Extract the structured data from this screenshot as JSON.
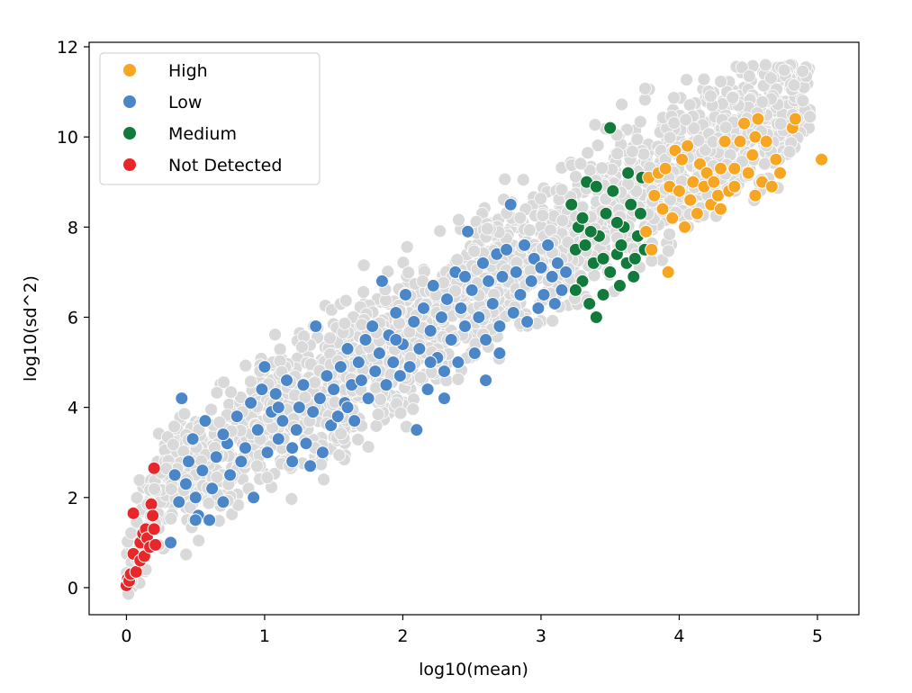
{
  "chart_data": {
    "type": "scatter",
    "title": "",
    "xlabel": "log10(mean)",
    "ylabel": "log10(sd^2)",
    "xlim": [
      -0.27,
      5.3
    ],
    "ylim": [
      -0.6,
      12.1
    ],
    "xticks": [
      0,
      1,
      2,
      3,
      4,
      5
    ],
    "yticks": [
      0,
      2,
      4,
      6,
      8,
      10,
      12
    ],
    "grid": false,
    "legend_position": "top-left",
    "background_points": {
      "color": "#d9d9d9",
      "description": "all other genes (grey cloud)"
    },
    "series": [
      {
        "name": "High",
        "color": "#f6a623",
        "points": [
          [
            3.78,
            9.1
          ],
          [
            3.82,
            8.7
          ],
          [
            3.85,
            9.2
          ],
          [
            3.88,
            8.4
          ],
          [
            3.9,
            9.3
          ],
          [
            3.93,
            8.9
          ],
          [
            3.95,
            8.2
          ],
          [
            3.97,
            9.7
          ],
          [
            4.0,
            8.8
          ],
          [
            4.02,
            9.5
          ],
          [
            4.04,
            8.0
          ],
          [
            4.06,
            9.8
          ],
          [
            4.08,
            8.6
          ],
          [
            4.1,
            9.0
          ],
          [
            4.13,
            8.3
          ],
          [
            4.15,
            9.4
          ],
          [
            4.18,
            8.9
          ],
          [
            4.2,
            9.2
          ],
          [
            4.23,
            8.5
          ],
          [
            4.25,
            9.0
          ],
          [
            4.28,
            8.7
          ],
          [
            4.3,
            9.3
          ],
          [
            4.33,
            9.9
          ],
          [
            4.36,
            8.8
          ],
          [
            4.4,
            9.3
          ],
          [
            4.44,
            9.9
          ],
          [
            4.47,
            10.3
          ],
          [
            4.5,
            9.2
          ],
          [
            4.53,
            9.6
          ],
          [
            4.55,
            10.0
          ],
          [
            4.57,
            10.4
          ],
          [
            4.6,
            9.0
          ],
          [
            4.63,
            9.9
          ],
          [
            4.67,
            8.9
          ],
          [
            4.7,
            9.5
          ],
          [
            4.73,
            9.2
          ],
          [
            4.82,
            10.2
          ],
          [
            4.84,
            10.4
          ],
          [
            5.03,
            9.5
          ],
          [
            3.92,
            7.0
          ],
          [
            3.8,
            7.5
          ],
          [
            3.76,
            7.9
          ],
          [
            4.4,
            8.9
          ],
          [
            4.3,
            8.4
          ],
          [
            4.55,
            8.7
          ]
        ]
      },
      {
        "name": "Low",
        "color": "#4a86c8",
        "points": [
          [
            0.32,
            1.0
          ],
          [
            0.35,
            2.5
          ],
          [
            0.38,
            1.9
          ],
          [
            0.4,
            4.2
          ],
          [
            0.45,
            2.8
          ],
          [
            0.48,
            3.3
          ],
          [
            0.5,
            2.0
          ],
          [
            0.52,
            1.6
          ],
          [
            0.55,
            2.6
          ],
          [
            0.57,
            3.7
          ],
          [
            0.6,
            1.5
          ],
          [
            0.62,
            2.2
          ],
          [
            0.65,
            2.9
          ],
          [
            0.7,
            1.9
          ],
          [
            0.73,
            3.2
          ],
          [
            0.75,
            2.5
          ],
          [
            0.8,
            3.8
          ],
          [
            0.83,
            2.8
          ],
          [
            0.86,
            3.1
          ],
          [
            0.9,
            4.1
          ],
          [
            0.92,
            2.0
          ],
          [
            0.95,
            3.5
          ],
          [
            0.98,
            4.4
          ],
          [
            1.0,
            4.9
          ],
          [
            1.02,
            3.0
          ],
          [
            1.05,
            3.9
          ],
          [
            1.08,
            4.3
          ],
          [
            1.1,
            3.3
          ],
          [
            1.13,
            3.7
          ],
          [
            1.16,
            4.6
          ],
          [
            1.2,
            2.8
          ],
          [
            1.23,
            3.5
          ],
          [
            1.25,
            4.0
          ],
          [
            1.28,
            4.5
          ],
          [
            1.3,
            3.2
          ],
          [
            1.33,
            2.7
          ],
          [
            1.35,
            3.9
          ],
          [
            1.37,
            5.8
          ],
          [
            1.4,
            4.2
          ],
          [
            1.42,
            3.0
          ],
          [
            1.45,
            4.7
          ],
          [
            1.48,
            3.6
          ],
          [
            1.5,
            4.4
          ],
          [
            1.53,
            3.8
          ],
          [
            1.55,
            4.9
          ],
          [
            1.58,
            4.1
          ],
          [
            1.6,
            5.3
          ],
          [
            1.63,
            4.5
          ],
          [
            1.65,
            3.7
          ],
          [
            1.68,
            5.0
          ],
          [
            1.7,
            4.6
          ],
          [
            1.73,
            5.5
          ],
          [
            1.75,
            4.2
          ],
          [
            1.78,
            5.8
          ],
          [
            1.8,
            4.8
          ],
          [
            1.83,
            5.2
          ],
          [
            1.85,
            6.8
          ],
          [
            1.88,
            4.5
          ],
          [
            1.9,
            5.6
          ],
          [
            1.93,
            5.0
          ],
          [
            1.95,
            6.1
          ],
          [
            1.98,
            4.7
          ],
          [
            2.0,
            5.4
          ],
          [
            2.02,
            6.5
          ],
          [
            2.05,
            4.9
          ],
          [
            2.08,
            5.9
          ],
          [
            2.1,
            3.5
          ],
          [
            2.12,
            5.3
          ],
          [
            2.15,
            6.2
          ],
          [
            2.18,
            4.4
          ],
          [
            2.2,
            5.7
          ],
          [
            2.22,
            6.7
          ],
          [
            2.25,
            5.1
          ],
          [
            2.28,
            6.0
          ],
          [
            2.3,
            4.8
          ],
          [
            2.32,
            6.4
          ],
          [
            2.35,
            5.5
          ],
          [
            2.38,
            7.0
          ],
          [
            2.4,
            5.0
          ],
          [
            2.42,
            6.2
          ],
          [
            2.45,
            5.8
          ],
          [
            2.47,
            7.9
          ],
          [
            2.5,
            6.6
          ],
          [
            2.52,
            5.2
          ],
          [
            2.55,
            6.0
          ],
          [
            2.58,
            7.2
          ],
          [
            2.6,
            5.5
          ],
          [
            2.62,
            6.8
          ],
          [
            2.65,
            6.3
          ],
          [
            2.68,
            7.4
          ],
          [
            2.7,
            5.8
          ],
          [
            2.72,
            6.9
          ],
          [
            2.75,
            7.5
          ],
          [
            2.78,
            8.5
          ],
          [
            2.8,
            6.1
          ],
          [
            2.82,
            7.0
          ],
          [
            2.85,
            6.5
          ],
          [
            2.88,
            7.6
          ],
          [
            2.9,
            5.9
          ],
          [
            2.93,
            6.8
          ],
          [
            2.95,
            7.3
          ],
          [
            2.98,
            6.2
          ],
          [
            3.0,
            7.1
          ],
          [
            3.02,
            6.5
          ],
          [
            3.05,
            7.6
          ],
          [
            3.08,
            6.9
          ],
          [
            3.1,
            6.3
          ],
          [
            3.12,
            7.2
          ],
          [
            3.15,
            6.6
          ],
          [
            3.18,
            7.0
          ],
          [
            2.3,
            4.2
          ],
          [
            2.6,
            4.6
          ],
          [
            2.7,
            5.2
          ],
          [
            1.6,
            4.0
          ],
          [
            1.2,
            3.1
          ],
          [
            0.7,
            3.4
          ],
          [
            0.5,
            1.5
          ],
          [
            0.43,
            2.3
          ],
          [
            1.1,
            4.0
          ],
          [
            2.45,
            6.9
          ],
          [
            2.2,
            5.0
          ],
          [
            1.95,
            5.5
          ]
        ]
      },
      {
        "name": "Medium",
        "color": "#127a3a",
        "points": [
          [
            3.22,
            8.5
          ],
          [
            3.25,
            7.5
          ],
          [
            3.27,
            8.0
          ],
          [
            3.3,
            6.8
          ],
          [
            3.32,
            7.6
          ],
          [
            3.33,
            9.0
          ],
          [
            3.35,
            6.3
          ],
          [
            3.38,
            7.2
          ],
          [
            3.4,
            8.9
          ],
          [
            3.42,
            7.8
          ],
          [
            3.45,
            6.5
          ],
          [
            3.47,
            8.3
          ],
          [
            3.5,
            10.2
          ],
          [
            3.5,
            7.0
          ],
          [
            3.52,
            8.8
          ],
          [
            3.55,
            7.4
          ],
          [
            3.57,
            6.7
          ],
          [
            3.6,
            8.0
          ],
          [
            3.62,
            7.2
          ],
          [
            3.63,
            9.2
          ],
          [
            3.65,
            8.5
          ],
          [
            3.67,
            6.9
          ],
          [
            3.7,
            7.8
          ],
          [
            3.72,
            8.3
          ],
          [
            3.73,
            9.1
          ],
          [
            3.75,
            7.5
          ],
          [
            3.3,
            8.2
          ],
          [
            3.45,
            7.3
          ],
          [
            3.55,
            8.1
          ],
          [
            3.68,
            7.3
          ],
          [
            3.4,
            6.0
          ],
          [
            3.25,
            6.6
          ],
          [
            3.58,
            7.6
          ],
          [
            3.36,
            7.9
          ]
        ]
      },
      {
        "name": "Not Detected",
        "color": "#e8272a",
        "points": [
          [
            0.0,
            0.05
          ],
          [
            0.01,
            0.2
          ],
          [
            0.02,
            0.15
          ],
          [
            0.03,
            0.3
          ],
          [
            0.05,
            0.75
          ],
          [
            0.05,
            1.65
          ],
          [
            0.07,
            0.35
          ],
          [
            0.1,
            0.6
          ],
          [
            0.1,
            1.0
          ],
          [
            0.12,
            1.2
          ],
          [
            0.13,
            0.7
          ],
          [
            0.14,
            1.3
          ],
          [
            0.15,
            1.1
          ],
          [
            0.17,
            0.9
          ],
          [
            0.18,
            1.85
          ],
          [
            0.19,
            1.6
          ],
          [
            0.2,
            1.3
          ],
          [
            0.2,
            2.65
          ],
          [
            0.21,
            0.95
          ]
        ]
      }
    ]
  }
}
